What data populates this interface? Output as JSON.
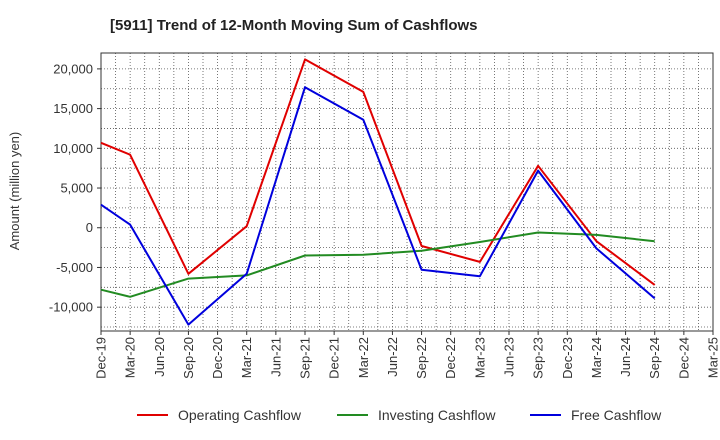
{
  "chart_data": {
    "type": "line",
    "title": "[5911]  Trend of 12-Month Moving Sum of Cashflows",
    "ylabel": "Amount (million yen)",
    "xlabel": "",
    "ylim": [
      -13000,
      22000
    ],
    "yticks": [
      20000,
      15000,
      10000,
      5000,
      0,
      -5000,
      -10000
    ],
    "ytick_labels": [
      "20,000",
      "15,000",
      "10,000",
      "5,000",
      "0",
      "-5,000",
      "-10,000"
    ],
    "categories": [
      "Dec-19",
      "Mar-20",
      "Jun-20",
      "Sep-20",
      "Dec-20",
      "Mar-21",
      "Jun-21",
      "Sep-21",
      "Dec-21",
      "Mar-22",
      "Jun-22",
      "Sep-22",
      "Dec-22",
      "Mar-23",
      "Jun-23",
      "Sep-23",
      "Dec-23",
      "Mar-24",
      "Jun-24",
      "Sep-24",
      "Dec-24",
      "Mar-25"
    ],
    "grid": true,
    "legend_position": "bottom",
    "series": [
      {
        "name": "Operating Cashflow",
        "color": "#e00000",
        "values": [
          10700,
          9200,
          null,
          -5800,
          null,
          200,
          null,
          21200,
          null,
          17100,
          null,
          -2300,
          null,
          -4300,
          null,
          7800,
          null,
          -1700,
          null,
          -7200,
          null,
          null
        ]
      },
      {
        "name": "Investing Cashflow",
        "color": "#228b22",
        "values": [
          -7800,
          -8700,
          null,
          -6400,
          null,
          -6000,
          null,
          -3500,
          null,
          -3400,
          null,
          -2900,
          null,
          -1800,
          null,
          -600,
          null,
          -900,
          null,
          -1700,
          null,
          null
        ]
      },
      {
        "name": "Free Cashflow",
        "color": "#0000dd",
        "values": [
          2900,
          400,
          null,
          -12200,
          null,
          -5800,
          null,
          17700,
          null,
          13600,
          null,
          -5300,
          null,
          -6100,
          null,
          7200,
          null,
          -2600,
          null,
          -8900,
          null,
          null
        ]
      }
    ]
  }
}
